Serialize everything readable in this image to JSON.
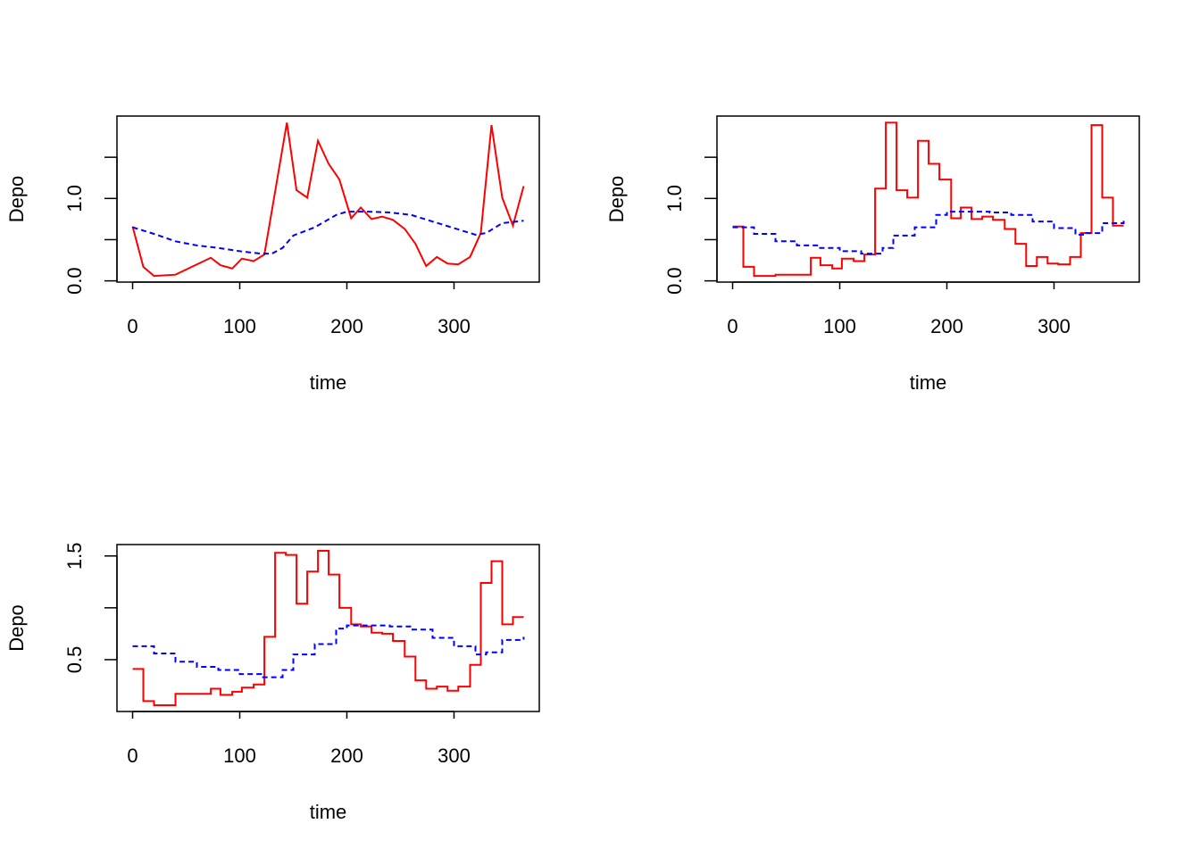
{
  "chart_data": [
    {
      "type": "line",
      "step": false,
      "xlabel": "time",
      "ylabel": "Depo",
      "xlim": [
        -14.6,
        379.6
      ],
      "ylim": [
        -0.015,
        2.0
      ],
      "xticks": [
        0,
        100,
        200,
        300
      ],
      "yticks": [
        {
          "value": 0,
          "label": "0.0"
        },
        {
          "value": 0.5,
          "label": null
        },
        {
          "value": 1,
          "label": "1.0"
        },
        {
          "value": 1.5,
          "label": null
        }
      ],
      "series": [
        {
          "color": "#ff0000",
          "dashed": false,
          "x": [
            0,
            10,
            20,
            40,
            73,
            82,
            93,
            102,
            113,
            123,
            144,
            153,
            163,
            173,
            183,
            193,
            204,
            213,
            223,
            233,
            243,
            254,
            264,
            274,
            284,
            294,
            304,
            315,
            325,
            335,
            345,
            355,
            365
          ],
          "values": [
            0.66,
            0.17,
            0.06,
            0.075,
            0.28,
            0.19,
            0.15,
            0.27,
            0.24,
            0.32,
            1.92,
            1.1,
            1.01,
            1.7,
            1.42,
            1.23,
            0.76,
            0.89,
            0.75,
            0.78,
            0.74,
            0.63,
            0.45,
            0.18,
            0.29,
            0.21,
            0.2,
            0.29,
            0.58,
            1.89,
            1.01,
            0.67,
            1.15
          ]
        },
        {
          "color": "#0000ff",
          "dashed": true,
          "x": [
            0,
            20,
            40,
            60,
            80,
            100,
            120,
            130,
            140,
            150,
            170,
            190,
            200,
            220,
            240,
            260,
            280,
            300,
            320,
            330,
            345,
            365
          ],
          "values": [
            0.65,
            0.57,
            0.48,
            0.43,
            0.4,
            0.36,
            0.33,
            0.33,
            0.4,
            0.55,
            0.65,
            0.8,
            0.84,
            0.84,
            0.83,
            0.8,
            0.72,
            0.64,
            0.56,
            0.58,
            0.7,
            0.73
          ]
        }
      ]
    },
    {
      "type": "line",
      "step": true,
      "xlabel": "time",
      "ylabel": "Depo",
      "xlim": [
        -14.6,
        379.6
      ],
      "ylim": [
        -0.015,
        2.0
      ],
      "xticks": [
        0,
        100,
        200,
        300
      ],
      "yticks": [
        {
          "value": 0,
          "label": "0.0"
        },
        {
          "value": 0.5,
          "label": null
        },
        {
          "value": 1,
          "label": "1.0"
        },
        {
          "value": 1.5,
          "label": null
        }
      ],
      "series": [
        {
          "color": "#ff0000",
          "dashed": false,
          "x": [
            0,
            10,
            20,
            40,
            73,
            82,
            93,
            102,
            113,
            123,
            133,
            143,
            153,
            163,
            173,
            183,
            193,
            204,
            213,
            223,
            233,
            243,
            254,
            264,
            274,
            284,
            294,
            304,
            315,
            325,
            335,
            345,
            355,
            365
          ],
          "values": [
            0.66,
            0.17,
            0.06,
            0.075,
            0.28,
            0.19,
            0.15,
            0.27,
            0.24,
            0.32,
            1.12,
            1.92,
            1.1,
            1.01,
            1.7,
            1.42,
            1.23,
            0.76,
            0.89,
            0.75,
            0.78,
            0.74,
            0.63,
            0.45,
            0.18,
            0.29,
            0.21,
            0.2,
            0.29,
            0.58,
            1.89,
            1.01,
            0.67,
            0.67
          ]
        },
        {
          "color": "#0000ff",
          "dashed": true,
          "x": [
            0,
            20,
            40,
            60,
            80,
            100,
            120,
            130,
            140,
            150,
            170,
            190,
            200,
            220,
            240,
            260,
            280,
            300,
            320,
            330,
            345,
            365
          ],
          "values": [
            0.65,
            0.57,
            0.48,
            0.43,
            0.4,
            0.36,
            0.33,
            0.33,
            0.4,
            0.55,
            0.65,
            0.8,
            0.84,
            0.84,
            0.83,
            0.8,
            0.72,
            0.64,
            0.56,
            0.58,
            0.7,
            0.73
          ]
        }
      ]
    },
    {
      "type": "line",
      "step": true,
      "xlabel": "time",
      "ylabel": "Depo",
      "xlim": [
        -14.6,
        379.6
      ],
      "ylim": [
        0.0,
        1.61
      ],
      "xticks": [
        0,
        100,
        200,
        300
      ],
      "yticks": [
        {
          "value": 0.5,
          "label": "0.5"
        },
        {
          "value": 1,
          "label": null
        },
        {
          "value": 1.5,
          "label": "1.5"
        }
      ],
      "series": [
        {
          "color": "#ff0000",
          "dashed": false,
          "x": [
            0,
            10,
            20,
            40,
            73,
            82,
            93,
            102,
            113,
            123,
            133,
            143,
            153,
            163,
            173,
            183,
            193,
            204,
            213,
            223,
            233,
            243,
            254,
            264,
            274,
            284,
            294,
            304,
            315,
            325,
            335,
            345,
            355,
            365
          ],
          "values": [
            0.41,
            0.1,
            0.06,
            0.17,
            0.22,
            0.16,
            0.19,
            0.23,
            0.26,
            0.72,
            1.53,
            1.51,
            1.04,
            1.35,
            1.55,
            1.32,
            1.0,
            0.84,
            0.82,
            0.76,
            0.75,
            0.68,
            0.53,
            0.3,
            0.22,
            0.24,
            0.2,
            0.24,
            0.45,
            1.24,
            1.45,
            0.84,
            0.91,
            0.91
          ]
        },
        {
          "color": "#0000ff",
          "dashed": true,
          "x": [
            0,
            20,
            40,
            60,
            80,
            100,
            120,
            130,
            140,
            150,
            170,
            190,
            200,
            220,
            240,
            260,
            280,
            300,
            320,
            330,
            345,
            365
          ],
          "values": [
            0.63,
            0.56,
            0.48,
            0.43,
            0.4,
            0.36,
            0.33,
            0.33,
            0.4,
            0.55,
            0.65,
            0.8,
            0.83,
            0.83,
            0.82,
            0.79,
            0.71,
            0.63,
            0.55,
            0.57,
            0.69,
            0.72
          ]
        }
      ]
    }
  ]
}
